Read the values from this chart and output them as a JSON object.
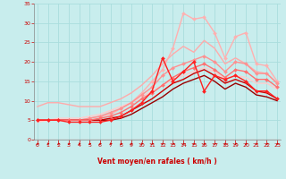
{
  "background_color": "#c8eded",
  "grid_color": "#aadddd",
  "xlabel": "Vent moyen/en rafales ( km/h )",
  "xlabel_color": "#cc0000",
  "tick_color": "#cc0000",
  "xmin": 0,
  "xmax": 23,
  "ymin": 0,
  "ymax": 35,
  "yticks": [
    0,
    5,
    10,
    15,
    20,
    25,
    30,
    35
  ],
  "xticks": [
    0,
    1,
    2,
    3,
    4,
    5,
    6,
    7,
    8,
    9,
    10,
    11,
    12,
    13,
    14,
    15,
    16,
    17,
    18,
    19,
    20,
    21,
    22,
    23
  ],
  "series": [
    {
      "x": [
        0,
        1,
        2,
        3,
        4,
        5,
        6,
        7,
        8,
        9,
        10,
        11,
        12,
        13,
        14,
        15,
        16,
        17,
        18,
        19,
        20,
        21,
        22,
        23
      ],
      "y": [
        5.0,
        5.0,
        5.0,
        5.0,
        5.0,
        5.5,
        6.0,
        6.5,
        8.0,
        9.5,
        12.0,
        15.0,
        18.0,
        23.5,
        32.5,
        31.0,
        31.5,
        27.5,
        21.0,
        26.5,
        27.5,
        19.5,
        19.0,
        15.0
      ],
      "color": "#ffb0b0",
      "lw": 1.0,
      "marker": "D",
      "markersize": 2.0,
      "zorder": 3
    },
    {
      "x": [
        0,
        1,
        2,
        3,
        4,
        5,
        6,
        7,
        8,
        9,
        10,
        11,
        12,
        13,
        14,
        15,
        16,
        17,
        18,
        19,
        20,
        21,
        22,
        23
      ],
      "y": [
        8.5,
        9.5,
        9.5,
        9.0,
        8.5,
        8.5,
        8.5,
        9.5,
        10.5,
        12.0,
        14.0,
        16.5,
        19.5,
        22.0,
        24.0,
        22.5,
        25.5,
        23.5,
        19.5,
        21.0,
        19.5,
        17.5,
        17.0,
        14.5
      ],
      "color": "#ffaaaa",
      "lw": 1.0,
      "marker": null,
      "zorder": 2
    },
    {
      "x": [
        0,
        1,
        2,
        3,
        4,
        5,
        6,
        7,
        8,
        9,
        10,
        11,
        12,
        13,
        14,
        15,
        16,
        17,
        18,
        19,
        20,
        21,
        22,
        23
      ],
      "y": [
        5.0,
        5.0,
        5.0,
        5.0,
        5.0,
        5.5,
        6.0,
        7.0,
        8.0,
        9.5,
        11.5,
        13.5,
        16.5,
        18.5,
        19.5,
        20.5,
        21.5,
        20.0,
        17.5,
        20.0,
        19.5,
        17.0,
        17.0,
        14.5
      ],
      "color": "#ff9090",
      "lw": 1.0,
      "marker": "D",
      "markersize": 2.0,
      "zorder": 3
    },
    {
      "x": [
        0,
        1,
        2,
        3,
        4,
        5,
        6,
        7,
        8,
        9,
        10,
        11,
        12,
        13,
        14,
        15,
        16,
        17,
        18,
        19,
        20,
        21,
        22,
        23
      ],
      "y": [
        5.0,
        5.0,
        5.0,
        4.5,
        4.5,
        4.5,
        4.5,
        5.0,
        6.0,
        7.5,
        9.5,
        12.5,
        21.0,
        15.0,
        17.5,
        20.0,
        12.5,
        16.5,
        15.5,
        16.5,
        15.0,
        12.5,
        12.5,
        10.5
      ],
      "color": "#ff2020",
      "lw": 1.0,
      "marker": "D",
      "markersize": 2.0,
      "zorder": 5
    },
    {
      "x": [
        0,
        1,
        2,
        3,
        4,
        5,
        6,
        7,
        8,
        9,
        10,
        11,
        12,
        13,
        14,
        15,
        16,
        17,
        18,
        19,
        20,
        21,
        22,
        23
      ],
      "y": [
        5.0,
        5.0,
        5.0,
        5.0,
        5.0,
        5.0,
        5.5,
        6.0,
        7.0,
        8.5,
        10.5,
        12.0,
        14.0,
        16.0,
        17.5,
        18.5,
        19.5,
        18.0,
        16.0,
        18.0,
        17.5,
        15.5,
        15.5,
        13.5
      ],
      "color": "#ff7070",
      "lw": 1.0,
      "marker": "D",
      "markersize": 2.0,
      "zorder": 4
    },
    {
      "x": [
        0,
        1,
        2,
        3,
        4,
        5,
        6,
        7,
        8,
        9,
        10,
        11,
        12,
        13,
        14,
        15,
        16,
        17,
        18,
        19,
        20,
        21,
        22,
        23
      ],
      "y": [
        5.0,
        5.0,
        5.0,
        5.0,
        5.0,
        5.0,
        5.0,
        5.5,
        6.0,
        7.5,
        9.0,
        10.5,
        12.5,
        14.5,
        15.5,
        17.0,
        18.0,
        16.5,
        14.5,
        15.5,
        14.5,
        12.5,
        12.0,
        10.5
      ],
      "color": "#cc0000",
      "lw": 1.0,
      "marker": null,
      "zorder": 3
    },
    {
      "x": [
        0,
        1,
        2,
        3,
        4,
        5,
        6,
        7,
        8,
        9,
        10,
        11,
        12,
        13,
        14,
        15,
        16,
        17,
        18,
        19,
        20,
        21,
        22,
        23
      ],
      "y": [
        5.0,
        5.0,
        5.0,
        5.0,
        5.0,
        5.0,
        5.0,
        5.0,
        5.5,
        6.5,
        8.0,
        9.5,
        11.0,
        13.0,
        14.5,
        15.5,
        16.5,
        15.0,
        13.0,
        14.5,
        13.5,
        11.5,
        11.0,
        10.0
      ],
      "color": "#990000",
      "lw": 1.0,
      "marker": null,
      "zorder": 2
    },
    {
      "x": [
        0,
        1,
        2,
        3,
        4,
        5,
        6,
        7,
        8,
        9,
        10,
        11,
        12,
        13,
        14,
        15,
        16,
        17,
        18,
        19,
        20,
        21,
        22,
        23
      ],
      "y": [
        4.5,
        5.0,
        5.5,
        5.5,
        5.5,
        6.0,
        6.5,
        7.5,
        8.5,
        9.5,
        11.0,
        12.5,
        14.0,
        15.5,
        16.5,
        17.5,
        18.5,
        17.5,
        15.5,
        16.5,
        16.0,
        14.5,
        14.5,
        13.0
      ],
      "color": "#ffcccc",
      "lw": 1.0,
      "marker": null,
      "zorder": 2
    }
  ]
}
